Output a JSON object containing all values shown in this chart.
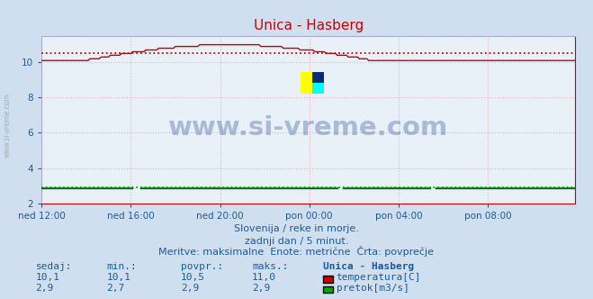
{
  "title": "Unica - Hasberg",
  "background_color": "#d0dff0",
  "plot_bg_color": "#e8f0f8",
  "grid_color": "#ffaaaa",
  "ylim": [
    2,
    11.5
  ],
  "yticks": [
    2,
    4,
    6,
    8,
    10
  ],
  "xlim": [
    0,
    287
  ],
  "xtick_labels": [
    "ned 12:00",
    "ned 16:00",
    "ned 20:00",
    "pon 00:00",
    "pon 04:00",
    "pon 08:00"
  ],
  "xtick_positions": [
    0,
    48,
    96,
    144,
    192,
    240
  ],
  "n_points": 288,
  "temp_avg": 10.5,
  "temp_color": "#cc0000",
  "flow_avg": 2.9,
  "flow_color": "#00aa00",
  "height_color": "#0000cc",
  "watermark": "www.si-vreme.com",
  "watermark_color": "#1a3a8a",
  "watermark_alpha": 0.3,
  "subtitle1": "Slovenija / reke in morje.",
  "subtitle2": "zadnji dan / 5 minut.",
  "subtitle3": "Meritve: maksimalne  Enote: metrične  Črta: povprečje",
  "label_color": "#1a5a9a",
  "table_headers": [
    "sedaj:",
    "min.:",
    "povpr.:",
    "maks.:",
    "Unica - Hasberg"
  ],
  "table_row1": [
    "10,1",
    "10,1",
    "10,5",
    "11,0"
  ],
  "table_row2": [
    "2,9",
    "2,7",
    "2,9",
    "2,9"
  ],
  "legend1": "temperatura[C]",
  "legend2": "pretok[m3/s]",
  "legend_color1": "#cc0000",
  "legend_color2": "#00aa00",
  "right_spine_color": "#cc0000",
  "bottom_spine_color": "#cc0000"
}
